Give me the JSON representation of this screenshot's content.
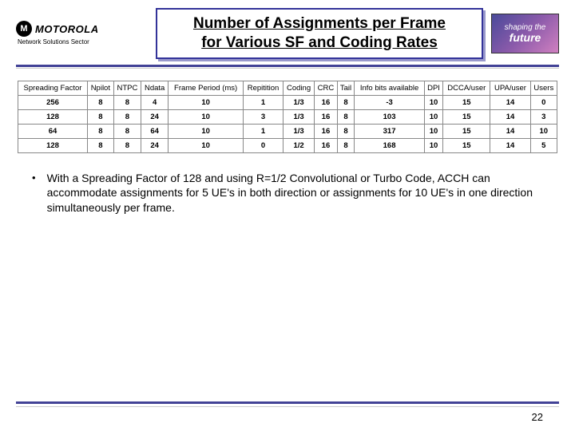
{
  "header": {
    "brand": "MOTOROLA",
    "brand_sub": "Network Solutions Sector",
    "title_l1": "Number of Assignments per Frame",
    "title_l2": "for Various SF and Coding Rates",
    "badge_l1": "shaping the",
    "badge_l2": "future"
  },
  "table": {
    "columns": [
      "Spreading Factor",
      "Npilot",
      "NTPC",
      "Ndata",
      "Frame Period (ms)",
      "Repitition",
      "Coding",
      "CRC",
      "Tail",
      "Info bits available",
      "DPI",
      "DCCA/user",
      "UPA/user",
      "Users"
    ],
    "rows": [
      [
        "256",
        "8",
        "8",
        "4",
        "10",
        "1",
        "1/3",
        "16",
        "8",
        "-3",
        "10",
        "15",
        "14",
        "0"
      ],
      [
        "128",
        "8",
        "8",
        "24",
        "10",
        "3",
        "1/3",
        "16",
        "8",
        "103",
        "10",
        "15",
        "14",
        "3"
      ],
      [
        "64",
        "8",
        "8",
        "64",
        "10",
        "1",
        "1/3",
        "16",
        "8",
        "317",
        "10",
        "15",
        "14",
        "10"
      ],
      [
        "128",
        "8",
        "8",
        "24",
        "10",
        "0",
        "1/2",
        "16",
        "8",
        "168",
        "10",
        "15",
        "14",
        "5"
      ]
    ]
  },
  "bullet": "With a Spreading Factor of 128 and using R=1/2 Convolutional or Turbo Code, ACCH can accommodate assignments for 5 UE's in both direction or assignments for 10 UE's in one direction simultaneously per frame.",
  "page": "22",
  "style": {
    "accent": "#424296",
    "title_fontsize": 19,
    "body_fontsize": 14,
    "table_fontsize": 9.5
  }
}
